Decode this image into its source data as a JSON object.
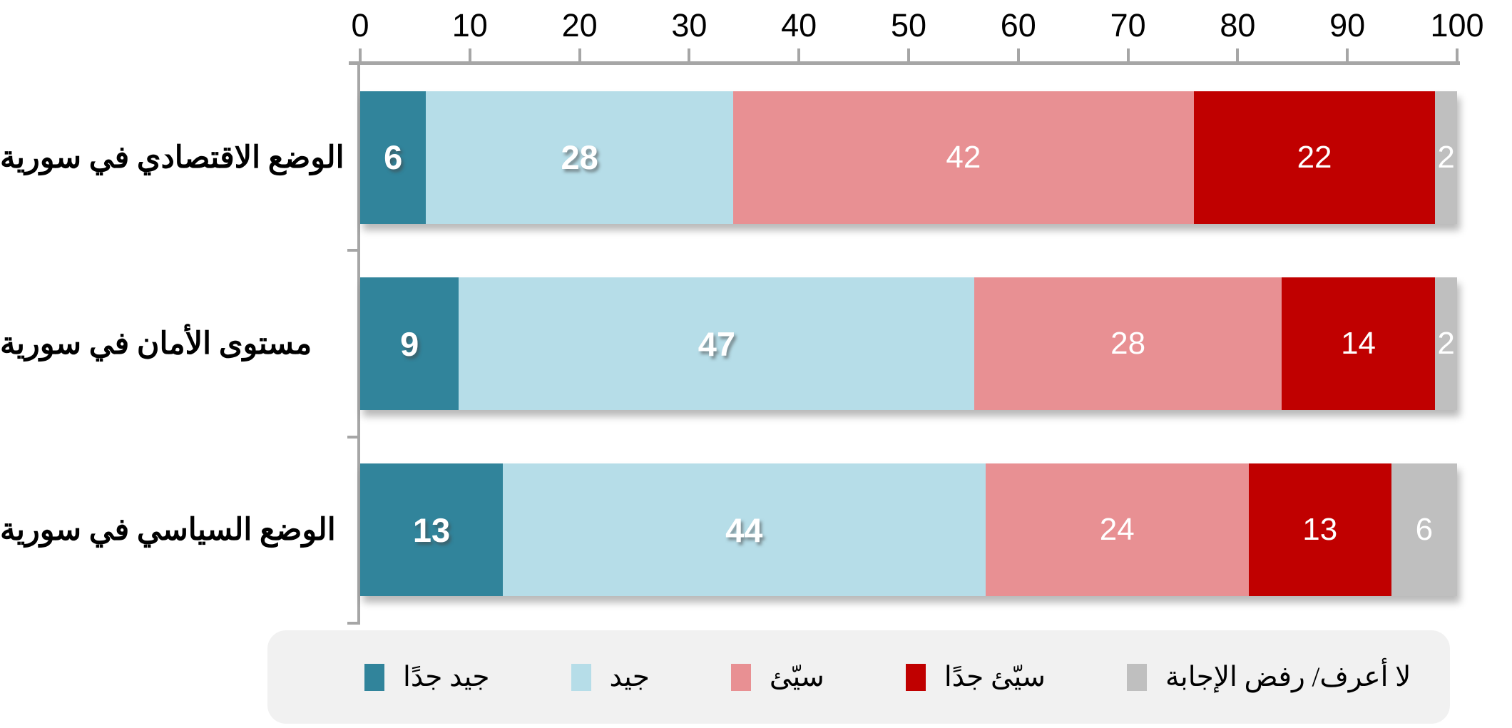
{
  "chart_data": {
    "type": "bar",
    "orientation": "horizontal",
    "stacked": true,
    "direction": "rtl",
    "title": "",
    "xlabel": "",
    "ylabel": "",
    "categories": [
      "الوضع الاقتصادي في سورية",
      "مستوى الأمان في سورية",
      "الوضع السياسي  في سورية"
    ],
    "series": [
      {
        "name": "جيد جدًا",
        "color": "#31849B",
        "label_style": "bold",
        "values": [
          6,
          9,
          13
        ]
      },
      {
        "name": "جيد",
        "color": "#B6DDE8",
        "label_style": "bold",
        "values": [
          28,
          47,
          44
        ]
      },
      {
        "name": "سيّئ",
        "color": "#E89093",
        "label_style": "light",
        "values": [
          42,
          28,
          24
        ]
      },
      {
        "name": "سيّئ جدًا",
        "color": "#C00000",
        "label_style": "light",
        "values": [
          22,
          14,
          13
        ]
      },
      {
        "name": "لا أعرف/ رفض الإجابة",
        "color": "#BFBFBF",
        "label_style": "light",
        "values": [
          2,
          2,
          6
        ]
      }
    ],
    "value_axis": {
      "min": 0,
      "max": 100,
      "tick_interval": 10,
      "position": "top",
      "tick_labels": [
        "0",
        "10",
        "20",
        "30",
        "40",
        "50",
        "60",
        "70",
        "80",
        "90",
        "100"
      ]
    },
    "legend": {
      "position": "bottom",
      "background": "#F1F1F1"
    },
    "data_label_color": "#FFFFFF",
    "grid": false
  },
  "style": {
    "axis_line_color": "#A6A6A6",
    "tick_text_color": "#000000",
    "category_text_color": "#000000",
    "background": "#FFFFFF"
  }
}
